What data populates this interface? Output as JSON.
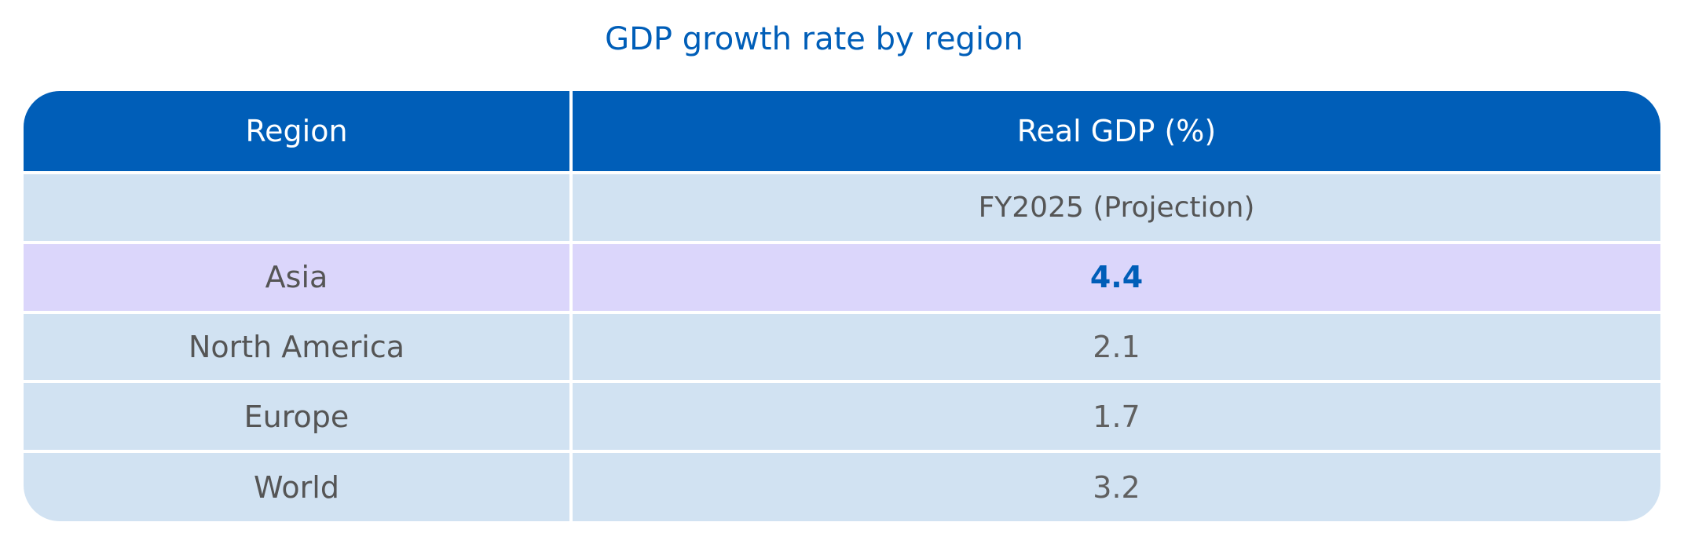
{
  "chart_data": {
    "type": "table",
    "title": "GDP growth rate by region",
    "columns": [
      "Region",
      "Real GDP (%)"
    ],
    "subheader": [
      "",
      "FY2025 (Projection)"
    ],
    "rows": [
      {
        "region": "Asia",
        "value": "4.4",
        "highlighted": true
      },
      {
        "region": "North America",
        "value": "2.1",
        "highlighted": false
      },
      {
        "region": "Europe",
        "value": "1.7",
        "highlighted": false
      },
      {
        "region": "World",
        "value": "3.2",
        "highlighted": false
      }
    ],
    "colors": {
      "title": "#005eb8",
      "header_bg": "#005eb8",
      "header_text": "#ffffff",
      "row_bg": "#d1e2f2",
      "highlight_bg": "#dbd6fb",
      "highlight_text": "#005eb8",
      "body_text": "#555555"
    }
  }
}
